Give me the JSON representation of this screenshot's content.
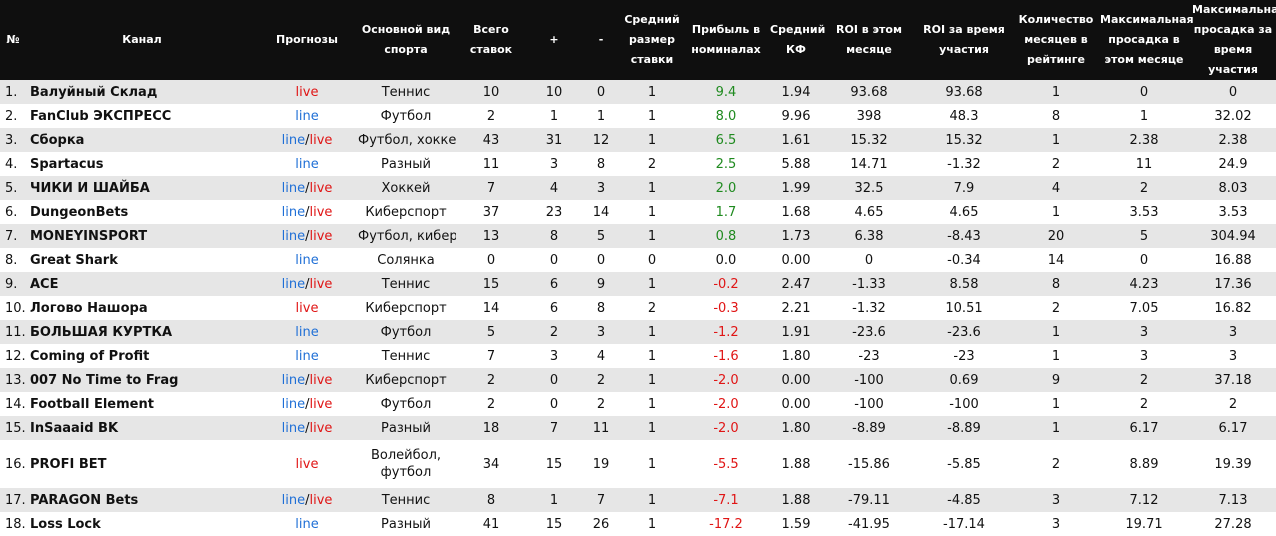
{
  "headers": [
    "№",
    "Канал",
    "Прогнозы",
    "Основной вид спорта",
    "Всего ставок",
    "+",
    "-",
    "Средний размер ставки",
    "Прибыль в номиналах",
    "Средний КФ",
    "ROI в этом месяце",
    "ROI за время участия",
    "Количество месяцев в рейтинге",
    "Максимальная просадка в этом месяце",
    "Максимальная просадка за время участия"
  ],
  "colors": {
    "line": "#1f6fd6",
    "live": "#e01515",
    "positive": "#1f8a1f",
    "negative": "#e01515",
    "header_bg": "#0f0f0f",
    "row_alt": "#e6e6e6"
  },
  "rows": [
    {
      "num": "1.",
      "name": "Валуйный Склад",
      "forecast": "live",
      "sport": "Теннис",
      "total": "10",
      "plus": "10",
      "minus": "0",
      "avg_stake": "1",
      "profit": "9.4",
      "avg_kf": "1.94",
      "roi_month": "93.68",
      "roi_total": "93.68",
      "months": "1",
      "dd_month": "0",
      "dd_total": "0"
    },
    {
      "num": "2.",
      "name": "FanClub ЭКСПРЕСС",
      "forecast": "line",
      "sport": "Футбол",
      "total": "2",
      "plus": "1",
      "minus": "1",
      "avg_stake": "1",
      "profit": "8.0",
      "avg_kf": "9.96",
      "roi_month": "398",
      "roi_total": "48.3",
      "months": "8",
      "dd_month": "1",
      "dd_total": "32.02"
    },
    {
      "num": "3.",
      "name": "Сборка",
      "forecast": "line/live",
      "sport": "Футбол, хоккей",
      "total": "43",
      "plus": "31",
      "minus": "12",
      "avg_stake": "1",
      "profit": "6.5",
      "avg_kf": "1.61",
      "roi_month": "15.32",
      "roi_total": "15.32",
      "months": "1",
      "dd_month": "2.38",
      "dd_total": "2.38"
    },
    {
      "num": "4.",
      "name": "Spartacus",
      "forecast": "line",
      "sport": "Разный",
      "total": "11",
      "plus": "3",
      "minus": "8",
      "avg_stake": "2",
      "profit": "2.5",
      "avg_kf": "5.88",
      "roi_month": "14.71",
      "roi_total": "-1.32",
      "months": "2",
      "dd_month": "11",
      "dd_total": "24.9"
    },
    {
      "num": "5.",
      "name": "ЧИКИ И ШАЙБА",
      "forecast": "line/live",
      "sport": "Хоккей",
      "total": "7",
      "plus": "4",
      "minus": "3",
      "avg_stake": "1",
      "profit": "2.0",
      "avg_kf": "1.99",
      "roi_month": "32.5",
      "roi_total": "7.9",
      "months": "4",
      "dd_month": "2",
      "dd_total": "8.03"
    },
    {
      "num": "6.",
      "name": "DungeonBets",
      "forecast": "line/live",
      "sport": "Киберспорт",
      "total": "37",
      "plus": "23",
      "minus": "14",
      "avg_stake": "1",
      "profit": "1.7",
      "avg_kf": "1.68",
      "roi_month": "4.65",
      "roi_total": "4.65",
      "months": "1",
      "dd_month": "3.53",
      "dd_total": "3.53"
    },
    {
      "num": "7.",
      "name": "MONEYINSPORT",
      "forecast": "line/live",
      "sport": "Футбол, кибер",
      "total": "13",
      "plus": "8",
      "minus": "5",
      "avg_stake": "1",
      "profit": "0.8",
      "avg_kf": "1.73",
      "roi_month": "6.38",
      "roi_total": "-8.43",
      "months": "20",
      "dd_month": "5",
      "dd_total": "304.94"
    },
    {
      "num": "8.",
      "name": "Great Shark",
      "forecast": "line",
      "sport": "Солянка",
      "total": "0",
      "plus": "0",
      "minus": "0",
      "avg_stake": "0",
      "profit": "0.0",
      "avg_kf": "0.00",
      "roi_month": "0",
      "roi_total": "-0.34",
      "months": "14",
      "dd_month": "0",
      "dd_total": "16.88"
    },
    {
      "num": "9.",
      "name": "ACE",
      "forecast": "line/live",
      "sport": "Теннис",
      "total": "15",
      "plus": "6",
      "minus": "9",
      "avg_stake": "1",
      "profit": "-0.2",
      "avg_kf": "2.47",
      "roi_month": "-1.33",
      "roi_total": "8.58",
      "months": "8",
      "dd_month": "4.23",
      "dd_total": "17.36"
    },
    {
      "num": "10.",
      "name": "Логово Нашора",
      "forecast": "live",
      "sport": "Киберспорт",
      "total": "14",
      "plus": "6",
      "minus": "8",
      "avg_stake": "2",
      "profit": "-0.3",
      "avg_kf": "2.21",
      "roi_month": "-1.32",
      "roi_total": "10.51",
      "months": "2",
      "dd_month": "7.05",
      "dd_total": "16.82"
    },
    {
      "num": "11.",
      "name": "БОЛЬШАЯ КУРТКА",
      "forecast": "line",
      "sport": "Футбол",
      "total": "5",
      "plus": "2",
      "minus": "3",
      "avg_stake": "1",
      "profit": "-1.2",
      "avg_kf": "1.91",
      "roi_month": "-23.6",
      "roi_total": "-23.6",
      "months": "1",
      "dd_month": "3",
      "dd_total": "3"
    },
    {
      "num": "12.",
      "name": "Coming of Profit",
      "forecast": "line",
      "sport": "Теннис",
      "total": "7",
      "plus": "3",
      "minus": "4",
      "avg_stake": "1",
      "profit": "-1.6",
      "avg_kf": "1.80",
      "roi_month": "-23",
      "roi_total": "-23",
      "months": "1",
      "dd_month": "3",
      "dd_total": "3"
    },
    {
      "num": "13.",
      "name": "007 No Time to Frag",
      "forecast": "line/live",
      "sport": "Киберспорт",
      "total": "2",
      "plus": "0",
      "minus": "2",
      "avg_stake": "1",
      "profit": "-2.0",
      "avg_kf": "0.00",
      "roi_month": "-100",
      "roi_total": "0.69",
      "months": "9",
      "dd_month": "2",
      "dd_total": "37.18"
    },
    {
      "num": "14.",
      "name": "Football Element",
      "forecast": "line/live",
      "sport": "Футбол",
      "total": "2",
      "plus": "0",
      "minus": "2",
      "avg_stake": "1",
      "profit": "-2.0",
      "avg_kf": "0.00",
      "roi_month": "-100",
      "roi_total": "-100",
      "months": "1",
      "dd_month": "2",
      "dd_total": "2"
    },
    {
      "num": "15.",
      "name": "InSaaaid BK",
      "forecast": "line/live",
      "sport": "Разный",
      "total": "18",
      "plus": "7",
      "minus": "11",
      "avg_stake": "1",
      "profit": "-2.0",
      "avg_kf": "1.80",
      "roi_month": "-8.89",
      "roi_total": "-8.89",
      "months": "1",
      "dd_month": "6.17",
      "dd_total": "6.17"
    },
    {
      "num": "16.",
      "name": "PROFI BET",
      "forecast": "live",
      "sport": "Волейбол, футбол",
      "total": "34",
      "plus": "15",
      "minus": "19",
      "avg_stake": "1",
      "profit": "-5.5",
      "avg_kf": "1.88",
      "roi_month": "-15.86",
      "roi_total": "-5.85",
      "months": "2",
      "dd_month": "8.89",
      "dd_total": "19.39",
      "tall": true
    },
    {
      "num": "17.",
      "name": "PARAGON Bets",
      "forecast": "line/live",
      "sport": "Теннис",
      "total": "8",
      "plus": "1",
      "minus": "7",
      "avg_stake": "1",
      "profit": "-7.1",
      "avg_kf": "1.88",
      "roi_month": "-79.11",
      "roi_total": "-4.85",
      "months": "3",
      "dd_month": "7.12",
      "dd_total": "7.13"
    },
    {
      "num": "18.",
      "name": "Loss Lock",
      "forecast": "line",
      "sport": "Разный",
      "total": "41",
      "plus": "15",
      "minus": "26",
      "avg_stake": "1",
      "profit": "-17.2",
      "avg_kf": "1.59",
      "roi_month": "-41.95",
      "roi_total": "-17.14",
      "months": "3",
      "dd_month": "19.71",
      "dd_total": "27.28"
    }
  ]
}
